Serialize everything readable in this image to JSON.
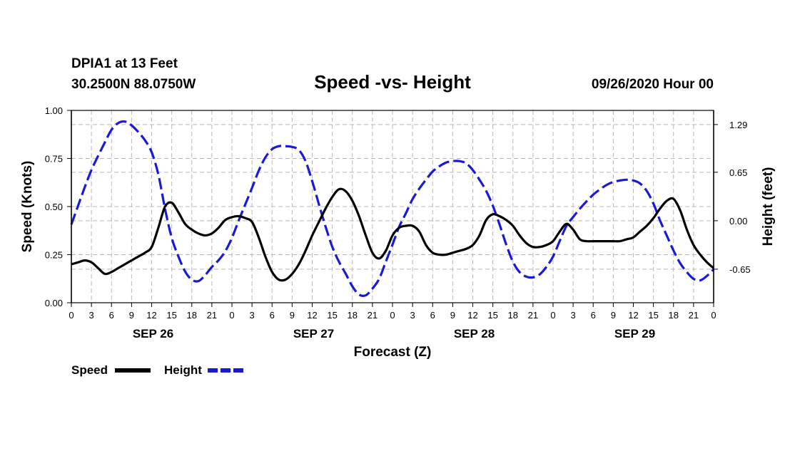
{
  "header": {
    "station": "DPIA1 at 13 Feet",
    "coords": "30.2500N 88.0750W",
    "title": "Speed -vs- Height",
    "timestamp": "09/26/2020 Hour 00"
  },
  "chart_data": {
    "type": "line",
    "title": "Speed -vs- Height",
    "xlabel": "Forecast (Z)",
    "ylabel_left": "Speed (Knots)",
    "ylabel_right": "Height (feet)",
    "x_range_hours": [
      0,
      96
    ],
    "x_tick_step_hours": 3,
    "x_tick_labels": [
      "0",
      "3",
      "6",
      "9",
      "12",
      "15",
      "18",
      "21",
      "0",
      "3",
      "6",
      "9",
      "12",
      "15",
      "18",
      "21",
      "0",
      "3",
      "6",
      "9",
      "12",
      "15",
      "18",
      "21",
      "0",
      "3",
      "6",
      "9",
      "12",
      "15",
      "18",
      "21",
      "0"
    ],
    "day_labels": [
      {
        "label": "SEP 26",
        "hour": 12
      },
      {
        "label": "SEP 27",
        "hour": 36
      },
      {
        "label": "SEP 28",
        "hour": 60
      },
      {
        "label": "SEP 29",
        "hour": 84
      }
    ],
    "y_left": {
      "min": 0.0,
      "max": 1.0,
      "ticks": [
        "0.00",
        "0.25",
        "0.50",
        "0.75",
        "1.00"
      ],
      "tick_values": [
        0,
        0.25,
        0.5,
        0.75,
        1.0
      ]
    },
    "y_right": {
      "min": -1.1,
      "max": 1.48,
      "ticks": [
        "1.29",
        "0.65",
        "0.00",
        "-0.65"
      ],
      "tick_values": [
        1.29,
        0.65,
        0.0,
        -0.65
      ]
    },
    "grid": true,
    "series": [
      {
        "name": "Speed",
        "axis": "left",
        "color": "#000000",
        "dash": "solid",
        "points": [
          [
            0,
            0.2
          ],
          [
            1,
            0.21
          ],
          [
            2,
            0.22
          ],
          [
            3,
            0.21
          ],
          [
            4,
            0.18
          ],
          [
            5,
            0.15
          ],
          [
            6,
            0.16
          ],
          [
            7,
            0.18
          ],
          [
            8,
            0.2
          ],
          [
            9,
            0.22
          ],
          [
            10,
            0.24
          ],
          [
            11,
            0.26
          ],
          [
            12,
            0.29
          ],
          [
            13,
            0.39
          ],
          [
            14,
            0.5
          ],
          [
            15,
            0.52
          ],
          [
            16,
            0.47
          ],
          [
            17,
            0.41
          ],
          [
            18,
            0.38
          ],
          [
            19,
            0.36
          ],
          [
            20,
            0.35
          ],
          [
            21,
            0.36
          ],
          [
            22,
            0.39
          ],
          [
            23,
            0.43
          ],
          [
            24,
            0.445
          ],
          [
            25,
            0.45
          ],
          [
            26,
            0.44
          ],
          [
            27,
            0.42
          ],
          [
            28,
            0.34
          ],
          [
            29,
            0.24
          ],
          [
            30,
            0.16
          ],
          [
            31,
            0.12
          ],
          [
            32,
            0.12
          ],
          [
            33,
            0.15
          ],
          [
            34,
            0.2
          ],
          [
            35,
            0.27
          ],
          [
            36,
            0.35
          ],
          [
            37,
            0.42
          ],
          [
            38,
            0.49
          ],
          [
            39,
            0.55
          ],
          [
            40,
            0.59
          ],
          [
            41,
            0.58
          ],
          [
            42,
            0.53
          ],
          [
            43,
            0.45
          ],
          [
            44,
            0.35
          ],
          [
            45,
            0.26
          ],
          [
            46,
            0.23
          ],
          [
            47,
            0.27
          ],
          [
            48,
            0.35
          ],
          [
            49,
            0.39
          ],
          [
            50,
            0.4
          ],
          [
            51,
            0.4
          ],
          [
            52,
            0.37
          ],
          [
            53,
            0.3
          ],
          [
            54,
            0.26
          ],
          [
            55,
            0.25
          ],
          [
            56,
            0.25
          ],
          [
            57,
            0.26
          ],
          [
            58,
            0.27
          ],
          [
            59,
            0.28
          ],
          [
            60,
            0.3
          ],
          [
            61,
            0.35
          ],
          [
            62,
            0.43
          ],
          [
            63,
            0.46
          ],
          [
            64,
            0.45
          ],
          [
            65,
            0.43
          ],
          [
            66,
            0.4
          ],
          [
            67,
            0.35
          ],
          [
            68,
            0.31
          ],
          [
            69,
            0.29
          ],
          [
            70,
            0.29
          ],
          [
            71,
            0.3
          ],
          [
            72,
            0.32
          ],
          [
            73,
            0.37
          ],
          [
            74,
            0.41
          ],
          [
            75,
            0.38
          ],
          [
            76,
            0.33
          ],
          [
            77,
            0.32
          ],
          [
            78,
            0.32
          ],
          [
            79,
            0.32
          ],
          [
            80,
            0.32
          ],
          [
            81,
            0.32
          ],
          [
            82,
            0.32
          ],
          [
            83,
            0.33
          ],
          [
            84,
            0.34
          ],
          [
            85,
            0.37
          ],
          [
            86,
            0.4
          ],
          [
            87,
            0.44
          ],
          [
            88,
            0.49
          ],
          [
            89,
            0.53
          ],
          [
            90,
            0.54
          ],
          [
            91,
            0.48
          ],
          [
            92,
            0.38
          ],
          [
            93,
            0.3
          ],
          [
            94,
            0.25
          ],
          [
            95,
            0.21
          ],
          [
            96,
            0.18
          ]
        ]
      },
      {
        "name": "Height",
        "axis": "right",
        "color": "#1a1ad4",
        "dash": "dashed",
        "points": [
          [
            0,
            -0.05
          ],
          [
            1,
            0.2
          ],
          [
            2,
            0.45
          ],
          [
            3,
            0.68
          ],
          [
            4,
            0.87
          ],
          [
            5,
            1.05
          ],
          [
            6,
            1.22
          ],
          [
            7,
            1.31
          ],
          [
            8,
            1.33
          ],
          [
            9,
            1.28
          ],
          [
            10,
            1.19
          ],
          [
            11,
            1.08
          ],
          [
            12,
            0.92
          ],
          [
            13,
            0.62
          ],
          [
            14,
            0.16
          ],
          [
            15,
            -0.23
          ],
          [
            16,
            -0.48
          ],
          [
            17,
            -0.68
          ],
          [
            18,
            -0.79
          ],
          [
            19,
            -0.81
          ],
          [
            20,
            -0.73
          ],
          [
            21,
            -0.62
          ],
          [
            22,
            -0.53
          ],
          [
            23,
            -0.41
          ],
          [
            24,
            -0.23
          ],
          [
            25,
            0.0
          ],
          [
            26,
            0.22
          ],
          [
            27,
            0.44
          ],
          [
            28,
            0.67
          ],
          [
            29,
            0.85
          ],
          [
            30,
            0.96
          ],
          [
            31,
            1.0
          ],
          [
            32,
            1.0
          ],
          [
            33,
            0.99
          ],
          [
            34,
            0.95
          ],
          [
            35,
            0.8
          ],
          [
            36,
            0.53
          ],
          [
            37,
            0.22
          ],
          [
            38,
            -0.08
          ],
          [
            39,
            -0.35
          ],
          [
            40,
            -0.55
          ],
          [
            41,
            -0.71
          ],
          [
            42,
            -0.88
          ],
          [
            43,
            -0.99
          ],
          [
            44,
            -1.0
          ],
          [
            45,
            -0.91
          ],
          [
            46,
            -0.78
          ],
          [
            47,
            -0.55
          ],
          [
            48,
            -0.32
          ],
          [
            49,
            -0.08
          ],
          [
            50,
            0.1
          ],
          [
            51,
            0.29
          ],
          [
            52,
            0.43
          ],
          [
            53,
            0.55
          ],
          [
            54,
            0.66
          ],
          [
            55,
            0.73
          ],
          [
            56,
            0.78
          ],
          [
            57,
            0.8
          ],
          [
            58,
            0.8
          ],
          [
            59,
            0.77
          ],
          [
            60,
            0.68
          ],
          [
            61,
            0.55
          ],
          [
            62,
            0.4
          ],
          [
            63,
            0.2
          ],
          [
            64,
            -0.05
          ],
          [
            65,
            -0.32
          ],
          [
            66,
            -0.55
          ],
          [
            67,
            -0.69
          ],
          [
            68,
            -0.75
          ],
          [
            69,
            -0.76
          ],
          [
            70,
            -0.72
          ],
          [
            71,
            -0.62
          ],
          [
            72,
            -0.48
          ],
          [
            73,
            -0.27
          ],
          [
            74,
            -0.07
          ],
          [
            75,
            0.05
          ],
          [
            76,
            0.16
          ],
          [
            77,
            0.26
          ],
          [
            78,
            0.35
          ],
          [
            79,
            0.42
          ],
          [
            80,
            0.48
          ],
          [
            81,
            0.52
          ],
          [
            82,
            0.54
          ],
          [
            83,
            0.55
          ],
          [
            84,
            0.54
          ],
          [
            85,
            0.5
          ],
          [
            86,
            0.4
          ],
          [
            87,
            0.23
          ],
          [
            88,
            0.0
          ],
          [
            89,
            -0.2
          ],
          [
            90,
            -0.4
          ],
          [
            91,
            -0.57
          ],
          [
            92,
            -0.69
          ],
          [
            93,
            -0.78
          ],
          [
            94,
            -0.8
          ],
          [
            95,
            -0.74
          ],
          [
            96,
            -0.65
          ]
        ]
      }
    ]
  },
  "legend": {
    "items": [
      {
        "label": "Speed",
        "color": "#000000",
        "dash": "solid"
      },
      {
        "label": "Height",
        "color": "#1a1ad4",
        "dash": "dashed"
      }
    ]
  }
}
